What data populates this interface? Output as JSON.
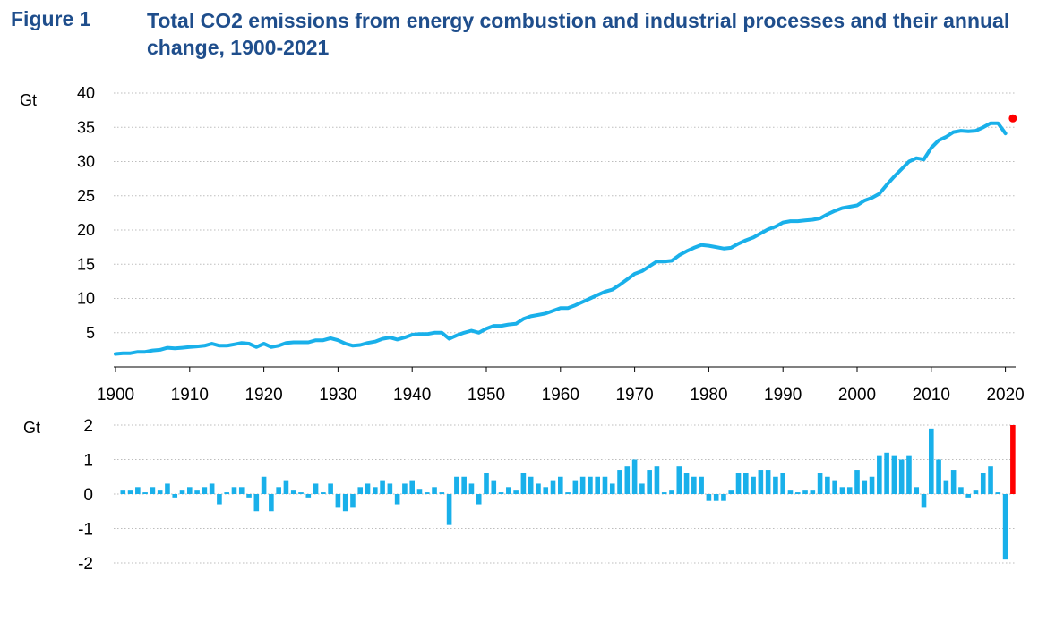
{
  "figure": {
    "label": "Figure 1",
    "title": "Total CO2 emissions from energy combustion and industrial processes and their annual change, 1900-2021"
  },
  "colors": {
    "series": "#19b0ea",
    "highlight": "#ff0000",
    "grid": "#bdbdbd",
    "title": "#1f4e8c"
  },
  "chart_data": [
    {
      "type": "line",
      "ylabel": "Gt",
      "ylim": [
        0,
        40
      ],
      "yticks": [
        "5",
        "10",
        "15",
        "20",
        "25",
        "30",
        "35",
        "40"
      ],
      "xticks": [
        "1900",
        "1910",
        "1920",
        "1930",
        "1940",
        "1950",
        "1960",
        "1970",
        "1980",
        "1990",
        "2000",
        "2010",
        "2020"
      ],
      "grid": true,
      "x": [
        1900,
        1901,
        1902,
        1903,
        1904,
        1905,
        1906,
        1907,
        1908,
        1909,
        1910,
        1911,
        1912,
        1913,
        1914,
        1915,
        1916,
        1917,
        1918,
        1919,
        1920,
        1921,
        1922,
        1923,
        1924,
        1925,
        1926,
        1927,
        1928,
        1929,
        1930,
        1931,
        1932,
        1933,
        1934,
        1935,
        1936,
        1937,
        1938,
        1939,
        1940,
        1941,
        1942,
        1943,
        1944,
        1945,
        1946,
        1947,
        1948,
        1949,
        1950,
        1951,
        1952,
        1953,
        1954,
        1955,
        1956,
        1957,
        1958,
        1959,
        1960,
        1961,
        1962,
        1963,
        1964,
        1965,
        1966,
        1967,
        1968,
        1969,
        1970,
        1971,
        1972,
        1973,
        1974,
        1975,
        1976,
        1977,
        1978,
        1979,
        1980,
        1981,
        1982,
        1983,
        1984,
        1985,
        1986,
        1987,
        1988,
        1989,
        1990,
        1991,
        1992,
        1993,
        1994,
        1995,
        1996,
        1997,
        1998,
        1999,
        2000,
        2001,
        2002,
        2003,
        2004,
        2005,
        2006,
        2007,
        2008,
        2009,
        2010,
        2011,
        2012,
        2013,
        2014,
        2015,
        2016,
        2017,
        2018,
        2019,
        2020
      ],
      "values": [
        1.9,
        2.0,
        2.0,
        2.2,
        2.2,
        2.4,
        2.5,
        2.8,
        2.7,
        2.8,
        2.9,
        3.0,
        3.1,
        3.4,
        3.1,
        3.1,
        3.3,
        3.5,
        3.4,
        2.9,
        3.4,
        2.9,
        3.1,
        3.5,
        3.6,
        3.6,
        3.6,
        3.9,
        3.9,
        4.2,
        3.9,
        3.4,
        3.1,
        3.2,
        3.5,
        3.7,
        4.1,
        4.3,
        4.0,
        4.3,
        4.7,
        4.8,
        4.8,
        5.0,
        5.0,
        4.1,
        4.6,
        5.0,
        5.3,
        5.0,
        5.6,
        6.0,
        6.0,
        6.2,
        6.3,
        7.0,
        7.4,
        7.6,
        7.8,
        8.2,
        8.6,
        8.6,
        9.0,
        9.5,
        10.0,
        10.5,
        11.0,
        11.3,
        12.0,
        12.8,
        13.6,
        14.0,
        14.7,
        15.4,
        15.4,
        15.5,
        16.3,
        16.9,
        17.4,
        17.8,
        17.7,
        17.5,
        17.3,
        17.4,
        18.0,
        18.5,
        18.9,
        19.5,
        20.1,
        20.5,
        21.1,
        21.3,
        21.3,
        21.4,
        21.5,
        21.7,
        22.3,
        22.8,
        23.2,
        23.4,
        23.6,
        24.3,
        24.7,
        25.3,
        26.6,
        27.8,
        28.9,
        30.0,
        30.5,
        30.3,
        32.0,
        33.1,
        33.6,
        34.3,
        34.5,
        34.4,
        34.5,
        35.0,
        35.6,
        35.6,
        34.1
      ],
      "highlight": {
        "x": 2021,
        "value": 36.3
      }
    },
    {
      "type": "bar",
      "ylabel": "Gt",
      "ylim": [
        -2,
        2
      ],
      "yticks": [
        "-2",
        "-1",
        "0",
        "1",
        "2"
      ],
      "grid": true,
      "x": [
        1901,
        1902,
        1903,
        1904,
        1905,
        1906,
        1907,
        1908,
        1909,
        1910,
        1911,
        1912,
        1913,
        1914,
        1915,
        1916,
        1917,
        1918,
        1919,
        1920,
        1921,
        1922,
        1923,
        1924,
        1925,
        1926,
        1927,
        1928,
        1929,
        1930,
        1931,
        1932,
        1933,
        1934,
        1935,
        1936,
        1937,
        1938,
        1939,
        1940,
        1941,
        1942,
        1943,
        1944,
        1945,
        1946,
        1947,
        1948,
        1949,
        1950,
        1951,
        1952,
        1953,
        1954,
        1955,
        1956,
        1957,
        1958,
        1959,
        1960,
        1961,
        1962,
        1963,
        1964,
        1965,
        1966,
        1967,
        1968,
        1969,
        1970,
        1971,
        1972,
        1973,
        1974,
        1975,
        1976,
        1977,
        1978,
        1979,
        1980,
        1981,
        1982,
        1983,
        1984,
        1985,
        1986,
        1987,
        1988,
        1989,
        1990,
        1991,
        1992,
        1993,
        1994,
        1995,
        1996,
        1997,
        1998,
        1999,
        2000,
        2001,
        2002,
        2003,
        2004,
        2005,
        2006,
        2007,
        2008,
        2009,
        2010,
        2011,
        2012,
        2013,
        2014,
        2015,
        2016,
        2017,
        2018,
        2019,
        2020
      ],
      "values": [
        0.1,
        0.1,
        0.2,
        0.05,
        0.2,
        0.1,
        0.3,
        -0.1,
        0.1,
        0.2,
        0.1,
        0.2,
        0.3,
        -0.3,
        0.05,
        0.2,
        0.2,
        -0.1,
        -0.5,
        0.5,
        -0.5,
        0.2,
        0.4,
        0.1,
        0.05,
        -0.1,
        0.3,
        0.05,
        0.3,
        -0.4,
        -0.5,
        -0.4,
        0.2,
        0.3,
        0.2,
        0.4,
        0.3,
        -0.3,
        0.3,
        0.4,
        0.15,
        0.05,
        0.2,
        0.05,
        -0.9,
        0.5,
        0.5,
        0.3,
        -0.3,
        0.6,
        0.4,
        0.05,
        0.2,
        0.1,
        0.6,
        0.5,
        0.3,
        0.2,
        0.4,
        0.5,
        0.05,
        0.4,
        0.5,
        0.5,
        0.5,
        0.5,
        0.3,
        0.7,
        0.8,
        1.0,
        0.3,
        0.7,
        0.8,
        0.05,
        0.1,
        0.8,
        0.6,
        0.5,
        0.5,
        -0.2,
        -0.2,
        -0.2,
        0.1,
        0.6,
        0.6,
        0.5,
        0.7,
        0.7,
        0.5,
        0.6,
        0.1,
        0.05,
        0.1,
        0.1,
        0.6,
        0.5,
        0.4,
        0.2,
        0.2,
        0.7,
        0.4,
        0.5,
        1.1,
        1.2,
        1.1,
        1.0,
        1.1,
        0.2,
        -0.4,
        1.9,
        1.0,
        0.4,
        0.7,
        0.2,
        -0.1,
        0.1,
        0.6,
        0.8,
        0.05,
        -1.9
      ],
      "highlight": {
        "x": 2021,
        "value": 2.0
      }
    }
  ]
}
